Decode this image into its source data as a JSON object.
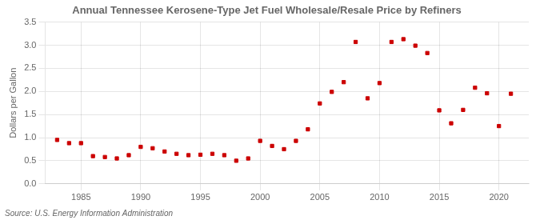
{
  "chart_data": {
    "type": "scatter",
    "title": "Annual Tennessee Kerosene-Type Jet Fuel Wholesale/Resale Price by Refiners",
    "ylabel": "Dollars per Gallon",
    "annotations": [
      "Source: U.S. Energy Information Administration"
    ],
    "x": [
      1983,
      1984,
      1985,
      1986,
      1987,
      1988,
      1989,
      1990,
      1991,
      1992,
      1993,
      1994,
      1995,
      1996,
      1997,
      1998,
      1999,
      2000,
      2001,
      2002,
      2003,
      2004,
      2005,
      2006,
      2007,
      2008,
      2009,
      2010,
      2011,
      2012,
      2013,
      2014,
      2015,
      2016,
      2017,
      2018,
      2019,
      2020,
      2021
    ],
    "values": [
      0.95,
      0.88,
      0.88,
      0.6,
      0.58,
      0.55,
      0.62,
      0.8,
      0.77,
      0.7,
      0.65,
      0.62,
      0.63,
      0.65,
      0.62,
      0.5,
      0.55,
      0.93,
      0.82,
      0.75,
      0.93,
      1.18,
      1.74,
      1.99,
      2.2,
      3.07,
      1.85,
      2.18,
      3.07,
      3.13,
      2.99,
      2.83,
      1.59,
      1.31,
      1.6,
      2.08,
      1.96,
      1.25,
      1.95
    ],
    "color": "#cc0000",
    "marker": "square",
    "xlim": [
      1982,
      2022.5
    ],
    "xticks": [
      1985,
      1990,
      1995,
      2000,
      2005,
      2010,
      2015,
      2020
    ],
    "ylim": [
      0.0,
      3.5
    ],
    "yticks": [
      {
        "value": 0,
        "label": "0.0"
      },
      0.5,
      {
        "value": 1,
        "label": "1.0"
      },
      1.5,
      {
        "value": 2,
        "label": "2.0"
      },
      2.5,
      {
        "value": 3,
        "label": "3.0"
      },
      3.5
    ],
    "grid": true
  }
}
